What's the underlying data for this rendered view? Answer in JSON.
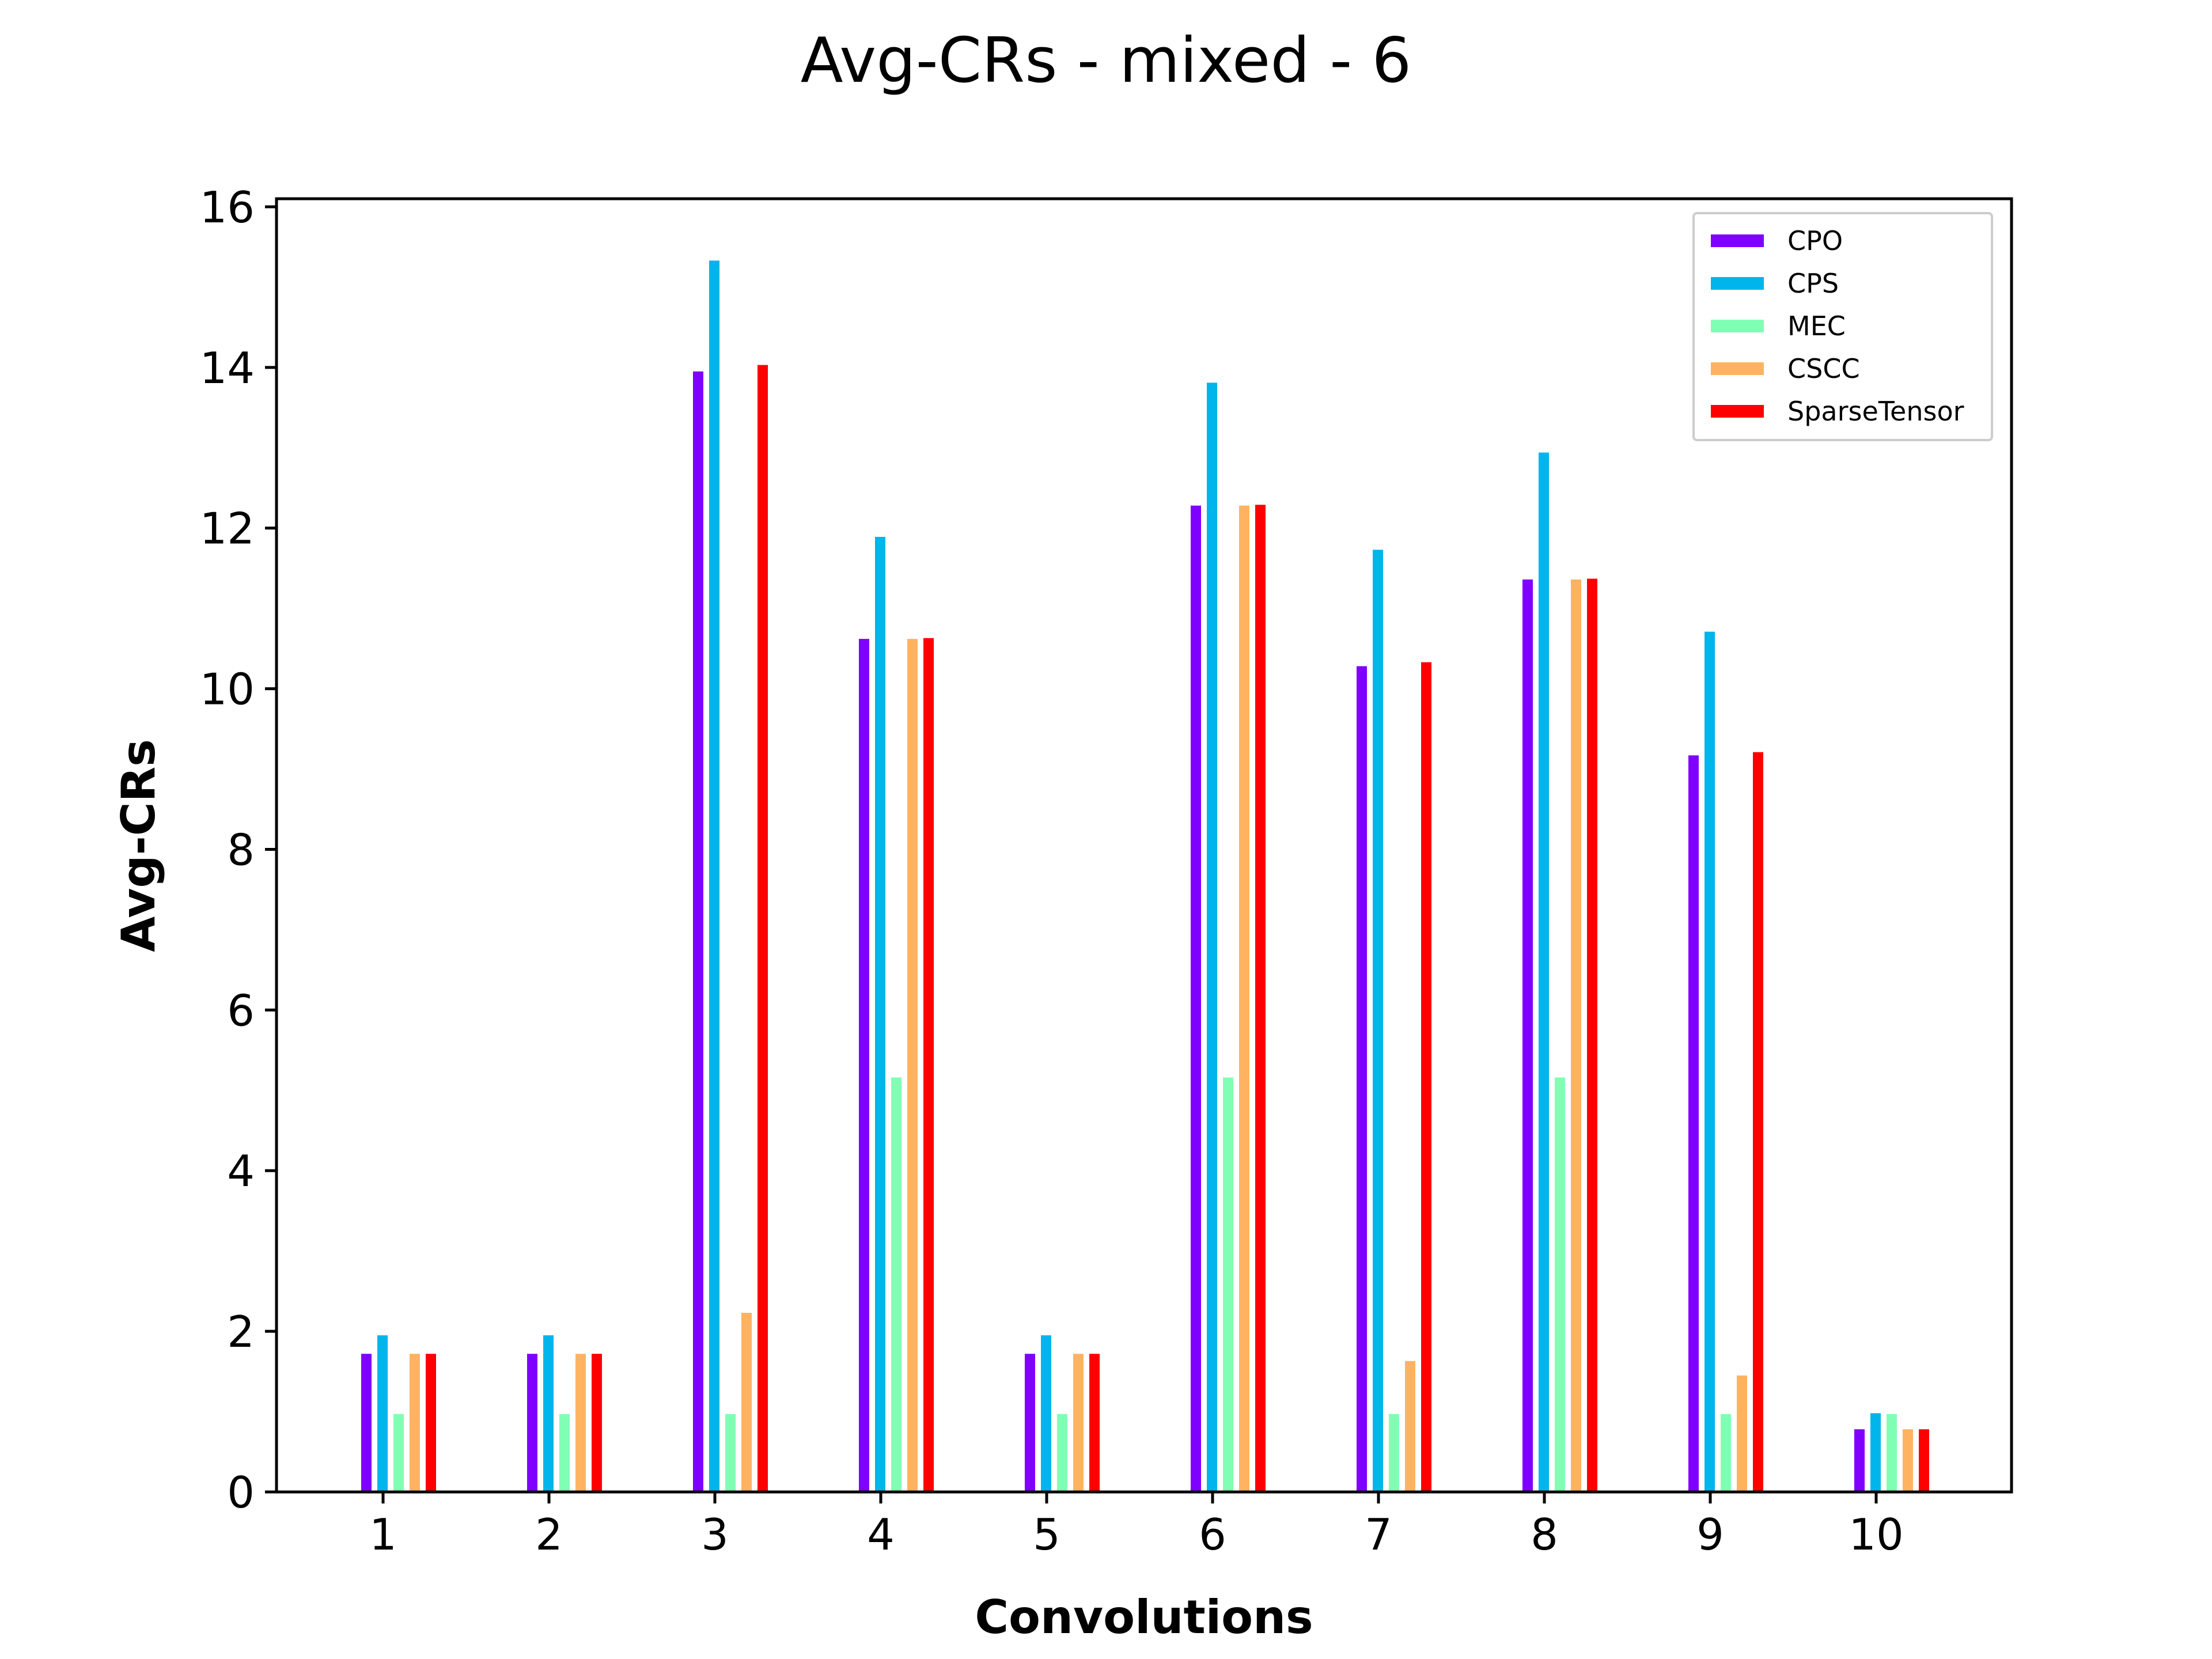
{
  "chart_data": {
    "type": "bar",
    "title": "Avg-CRs - mixed - 6",
    "xlabel": "Convolutions",
    "ylabel": "Avg-CRs",
    "categories": [
      "1",
      "2",
      "3",
      "4",
      "5",
      "6",
      "7",
      "8",
      "9",
      "10"
    ],
    "ylim": [
      0,
      16.1
    ],
    "yticks": [
      "0",
      "2",
      "4",
      "6",
      "8",
      "10",
      "12",
      "14",
      "16"
    ],
    "legend_position": "top-right",
    "grid": false,
    "series": [
      {
        "name": "CPO",
        "color": "#8000ff",
        "values": [
          1.72,
          1.72,
          13.95,
          10.62,
          1.72,
          12.28,
          10.28,
          11.36,
          9.17,
          0.78
        ]
      },
      {
        "name": "CPS",
        "color": "#00b5eb",
        "values": [
          1.95,
          1.95,
          15.33,
          11.89,
          1.95,
          13.81,
          11.73,
          12.94,
          10.71,
          0.98
        ]
      },
      {
        "name": "MEC",
        "color": "#80ffb4",
        "values": [
          0.97,
          0.97,
          0.97,
          5.16,
          0.97,
          5.16,
          0.97,
          5.16,
          0.97,
          0.97
        ]
      },
      {
        "name": "CSCC",
        "color": "#ffb360",
        "values": [
          1.72,
          1.72,
          2.23,
          10.62,
          1.72,
          12.28,
          1.63,
          11.36,
          1.45,
          0.78
        ]
      },
      {
        "name": "SparseTensor",
        "color": "#ff0000",
        "values": [
          1.72,
          1.72,
          14.03,
          10.63,
          1.72,
          12.29,
          10.33,
          11.37,
          9.21,
          0.78
        ]
      }
    ]
  }
}
